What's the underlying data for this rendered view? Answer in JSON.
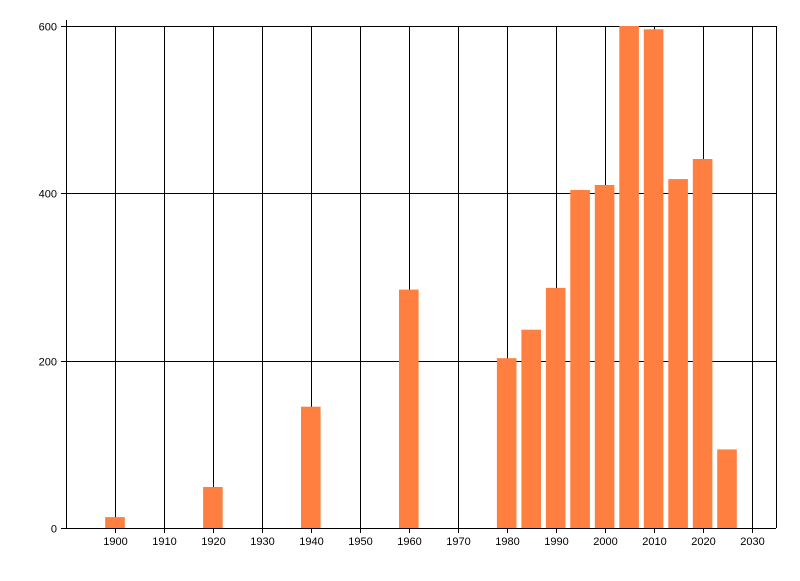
{
  "chart_data": {
    "type": "bar",
    "title": "",
    "xlabel": "",
    "ylabel": "",
    "x": [
      1900,
      1920,
      1940,
      1960,
      1980,
      1985,
      1990,
      1995,
      2000,
      2005,
      2010,
      2015,
      2020,
      2025
    ],
    "values": [
      13,
      49,
      145,
      285,
      203,
      237,
      287,
      404,
      410,
      601,
      596,
      417,
      441,
      94
    ],
    "xlim": [
      1890,
      2035
    ],
    "ylim": [
      0,
      600
    ],
    "x_ticks": [
      1900,
      1910,
      1920,
      1930,
      1940,
      1950,
      1960,
      1970,
      1980,
      1990,
      2000,
      2010,
      2020,
      2030
    ],
    "y_ticks": [
      0,
      200,
      400,
      600
    ],
    "bar_width_years": 4,
    "grid": true,
    "legend": "none",
    "colors": {
      "bar": "#ff7f40",
      "grid": "#000000",
      "axis": "#000000",
      "background": "#ffffff"
    }
  }
}
